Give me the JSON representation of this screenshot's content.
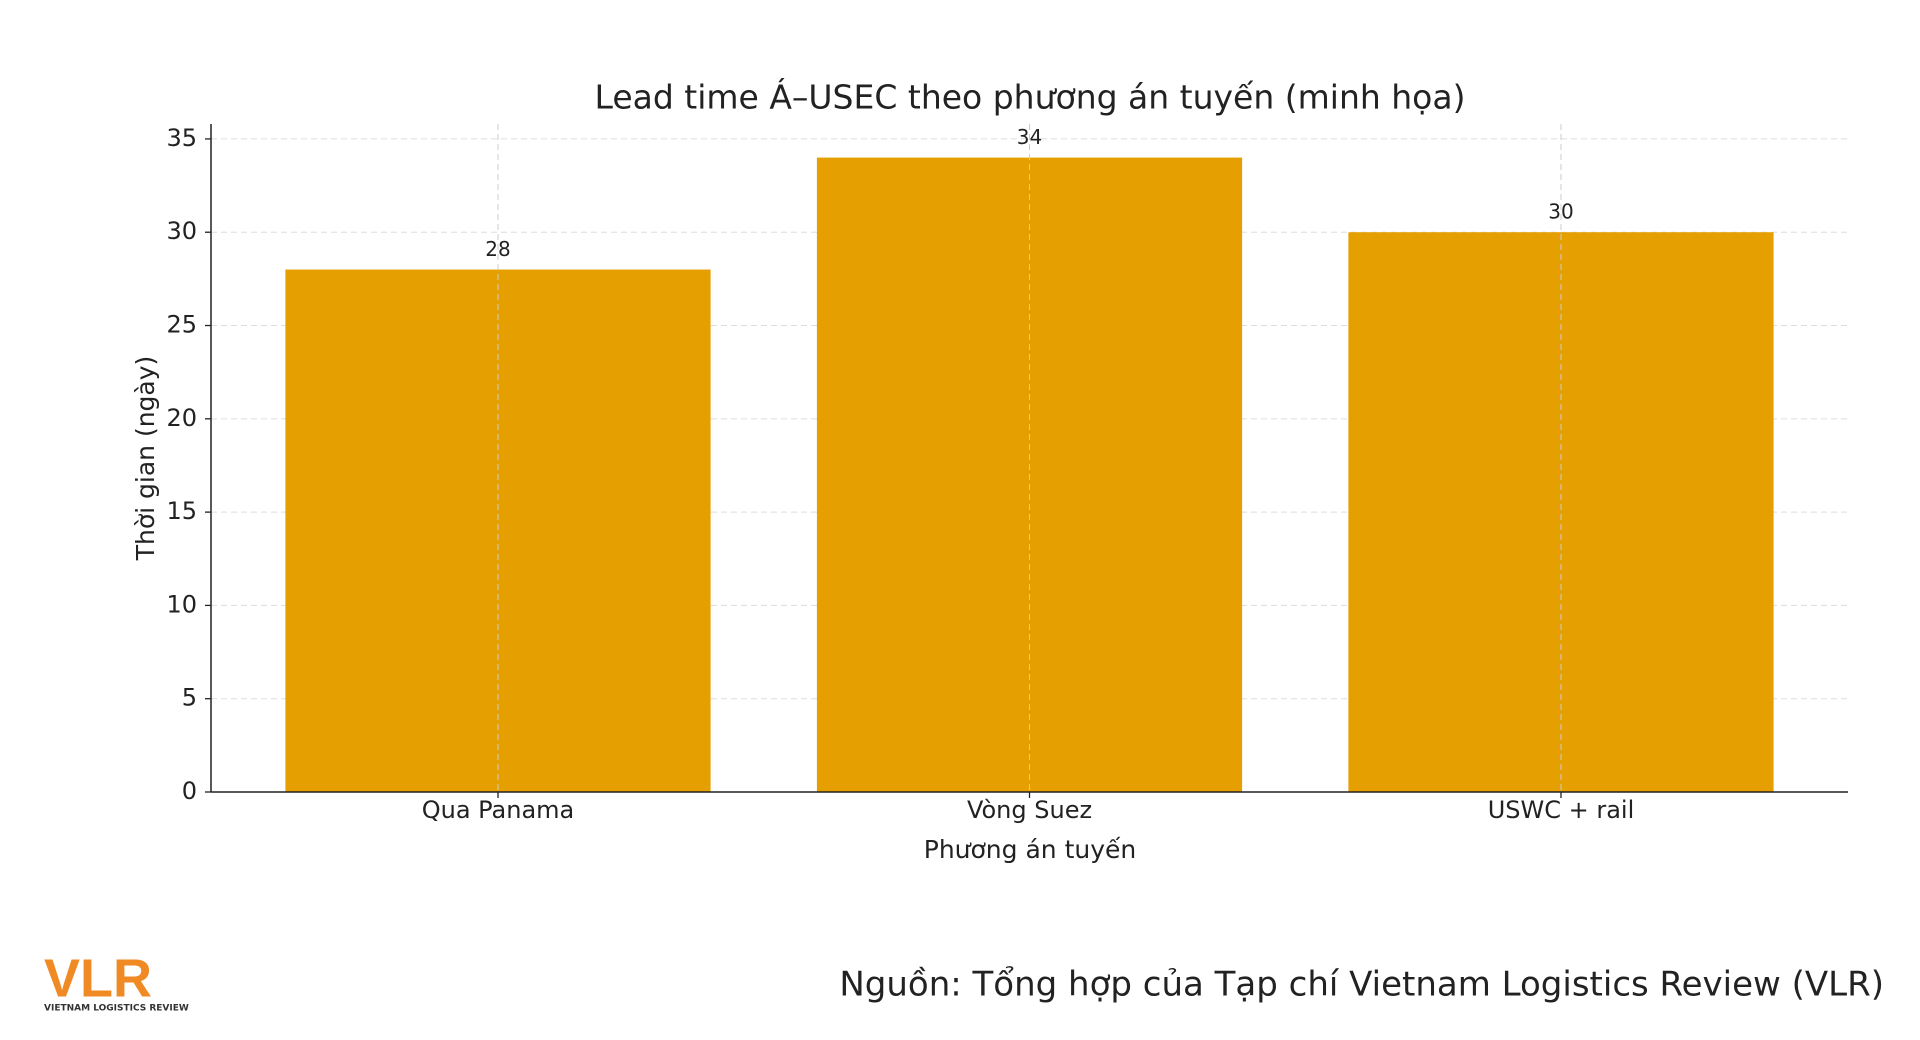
{
  "chart_data": {
    "type": "bar",
    "title": "Lead time Á–USEC theo phương án tuyến (minh họa)",
    "xlabel": "Phương án tuyến",
    "ylabel": "Thời gian (ngày)",
    "categories": [
      "Qua Panama",
      "Vòng Suez",
      "USWC + rail"
    ],
    "values": [
      28,
      34,
      30
    ],
    "color": "#E69F00",
    "ylim": [
      0,
      35.8
    ],
    "yticks": [
      0,
      5,
      10,
      15,
      20,
      25,
      30,
      35
    ],
    "grid": true
  },
  "logo": {
    "text": "VLR",
    "tagline": "VIETNAM LOGISTICS REVIEW"
  },
  "source": "Nguồn: Tổng hợp của Tạp chí Vietnam Logistics Review (VLR)"
}
